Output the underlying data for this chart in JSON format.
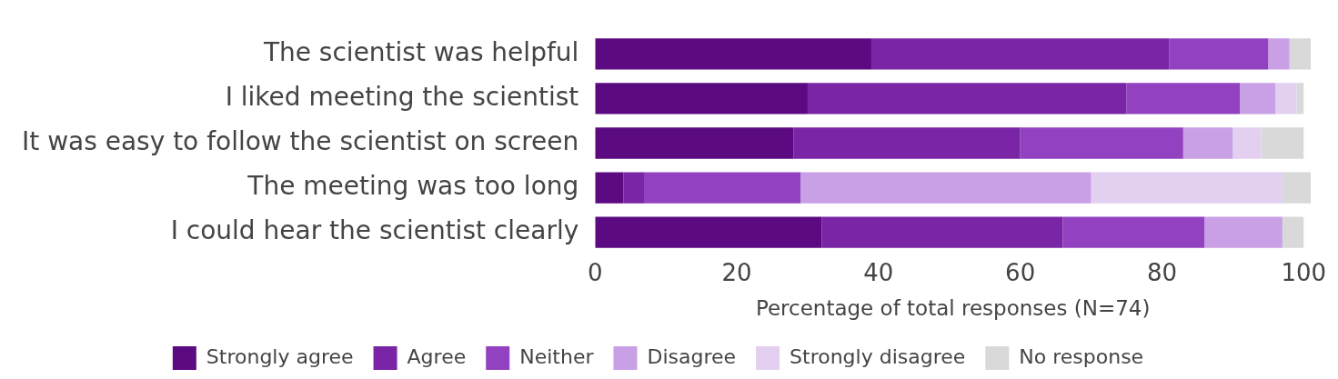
{
  "chart_data": {
    "type": "bar",
    "orientation": "horizontal",
    "stacked": true,
    "xlabel": "Percentage of total responses (N=74)",
    "categories": [
      "The scientist was helpful",
      "I liked meeting the scientist",
      "It was easy to follow the scientist on screen",
      "The meeting was too long",
      "I could hear the scientist clearly"
    ],
    "series": [
      {
        "name": "Strongly agree",
        "color": "#5c0a82",
        "values": [
          39,
          30,
          28,
          4,
          32
        ]
      },
      {
        "name": "Agree",
        "color": "#7a25a6",
        "values": [
          42,
          45,
          32,
          3,
          34
        ]
      },
      {
        "name": "Neither",
        "color": "#9242c0",
        "values": [
          14,
          16,
          23,
          22,
          20
        ]
      },
      {
        "name": "Disagree",
        "color": "#c9a0e6",
        "values": [
          3,
          5,
          7,
          41,
          11
        ]
      },
      {
        "name": "Strongly disagree",
        "color": "#e3d0f1",
        "values": [
          0,
          3,
          4,
          27,
          0
        ]
      },
      {
        "name": "No response",
        "color": "#d9d9d9",
        "values": [
          3,
          1,
          6,
          4,
          3
        ]
      }
    ],
    "xlim": [
      0,
      101
    ],
    "xticks": [
      0,
      20,
      40,
      60,
      80,
      100
    ],
    "grid": false,
    "legend": "bottom"
  }
}
